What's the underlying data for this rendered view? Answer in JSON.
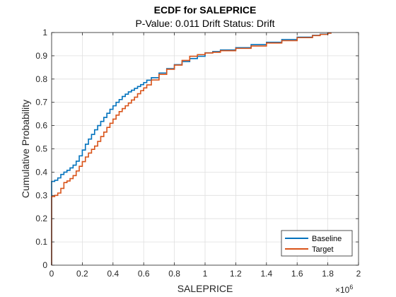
{
  "chart_data": {
    "type": "line",
    "step": true,
    "title": "ECDF for SALEPRICE",
    "subtitle": "P-Value: 0.011 Drift Status: Drift",
    "xlabel": "SALEPRICE",
    "ylabel": "Cumulative Probability",
    "x_exponent_base": "×10",
    "x_exponent_power": "6",
    "xlim": [
      0,
      2
    ],
    "ylim": [
      0,
      1
    ],
    "x_ticks": [
      "0",
      "0.2",
      "0.4",
      "0.6",
      "0.8",
      "1",
      "1.2",
      "1.4",
      "1.6",
      "1.8",
      "2"
    ],
    "y_ticks": [
      "0",
      "0.1",
      "0.2",
      "0.3",
      "0.4",
      "0.5",
      "0.6",
      "0.7",
      "0.8",
      "0.9",
      "1"
    ],
    "grid": true,
    "legend_position": "bottom-right",
    "series": [
      {
        "name": "Baseline",
        "color": "#0072BD",
        "points": [
          [
            0.0,
            0.0
          ],
          [
            0.0,
            0.36
          ],
          [
            0.01,
            0.36
          ],
          [
            0.02,
            0.365
          ],
          [
            0.04,
            0.375
          ],
          [
            0.06,
            0.39
          ],
          [
            0.08,
            0.4
          ],
          [
            0.1,
            0.408
          ],
          [
            0.12,
            0.418
          ],
          [
            0.14,
            0.43
          ],
          [
            0.16,
            0.447
          ],
          [
            0.18,
            0.47
          ],
          [
            0.2,
            0.495
          ],
          [
            0.22,
            0.52
          ],
          [
            0.24,
            0.542
          ],
          [
            0.26,
            0.562
          ],
          [
            0.28,
            0.582
          ],
          [
            0.3,
            0.6
          ],
          [
            0.32,
            0.618
          ],
          [
            0.34,
            0.635
          ],
          [
            0.36,
            0.653
          ],
          [
            0.38,
            0.67
          ],
          [
            0.4,
            0.685
          ],
          [
            0.42,
            0.7
          ],
          [
            0.44,
            0.712
          ],
          [
            0.46,
            0.725
          ],
          [
            0.48,
            0.735
          ],
          [
            0.5,
            0.745
          ],
          [
            0.52,
            0.752
          ],
          [
            0.54,
            0.76
          ],
          [
            0.56,
            0.768
          ],
          [
            0.58,
            0.776
          ],
          [
            0.6,
            0.785
          ],
          [
            0.62,
            0.795
          ],
          [
            0.65,
            0.806
          ],
          [
            0.7,
            0.826
          ],
          [
            0.75,
            0.845
          ],
          [
            0.8,
            0.862
          ],
          [
            0.85,
            0.875
          ],
          [
            0.9,
            0.888
          ],
          [
            0.95,
            0.898
          ],
          [
            1.0,
            0.913
          ],
          [
            1.05,
            0.918
          ],
          [
            1.1,
            0.925
          ],
          [
            1.2,
            0.935
          ],
          [
            1.3,
            0.948
          ],
          [
            1.4,
            0.958
          ],
          [
            1.5,
            0.97
          ],
          [
            1.6,
            0.98
          ],
          [
            1.7,
            0.988
          ],
          [
            1.75,
            0.993
          ],
          [
            1.8,
            0.998
          ],
          [
            1.82,
            1.0
          ]
        ]
      },
      {
        "name": "Target",
        "color": "#D95319",
        "points": [
          [
            0.0,
            0.0
          ],
          [
            0.0,
            0.295
          ],
          [
            0.01,
            0.295
          ],
          [
            0.02,
            0.3
          ],
          [
            0.04,
            0.31
          ],
          [
            0.06,
            0.33
          ],
          [
            0.08,
            0.355
          ],
          [
            0.1,
            0.362
          ],
          [
            0.12,
            0.372
          ],
          [
            0.14,
            0.385
          ],
          [
            0.16,
            0.405
          ],
          [
            0.18,
            0.425
          ],
          [
            0.2,
            0.445
          ],
          [
            0.22,
            0.465
          ],
          [
            0.24,
            0.482
          ],
          [
            0.26,
            0.498
          ],
          [
            0.28,
            0.512
          ],
          [
            0.3,
            0.532
          ],
          [
            0.32,
            0.553
          ],
          [
            0.34,
            0.572
          ],
          [
            0.36,
            0.592
          ],
          [
            0.38,
            0.61
          ],
          [
            0.4,
            0.628
          ],
          [
            0.42,
            0.645
          ],
          [
            0.44,
            0.66
          ],
          [
            0.46,
            0.673
          ],
          [
            0.48,
            0.685
          ],
          [
            0.5,
            0.697
          ],
          [
            0.52,
            0.71
          ],
          [
            0.54,
            0.722
          ],
          [
            0.56,
            0.737
          ],
          [
            0.58,
            0.75
          ],
          [
            0.6,
            0.762
          ],
          [
            0.62,
            0.775
          ],
          [
            0.65,
            0.796
          ],
          [
            0.7,
            0.82
          ],
          [
            0.75,
            0.842
          ],
          [
            0.8,
            0.86
          ],
          [
            0.85,
            0.88
          ],
          [
            0.9,
            0.898
          ],
          [
            0.95,
            0.905
          ],
          [
            1.0,
            0.912
          ],
          [
            1.05,
            0.915
          ],
          [
            1.1,
            0.922
          ],
          [
            1.2,
            0.932
          ],
          [
            1.3,
            0.942
          ],
          [
            1.4,
            0.955
          ],
          [
            1.5,
            0.965
          ],
          [
            1.6,
            0.978
          ],
          [
            1.7,
            0.987
          ],
          [
            1.75,
            0.992
          ],
          [
            1.8,
            0.997
          ],
          [
            1.82,
            1.0
          ]
        ]
      }
    ]
  }
}
